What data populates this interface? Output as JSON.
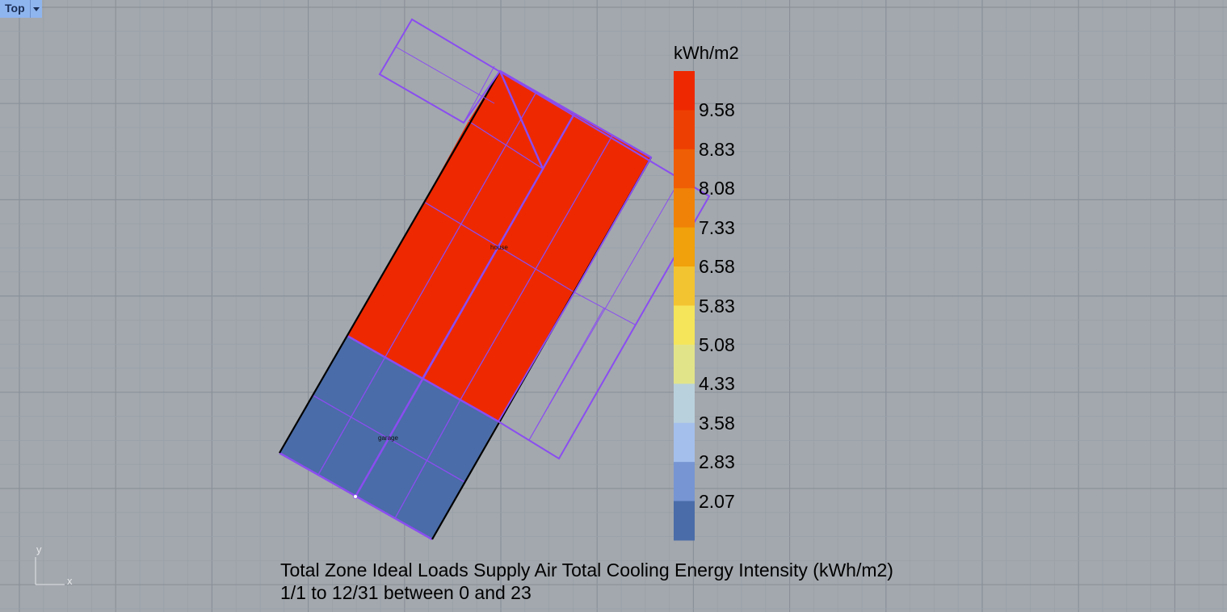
{
  "viewport": {
    "name": "Top",
    "menu_icon": "chevron-down-icon"
  },
  "zones": [
    {
      "label": "house",
      "value_color": "#ee2800"
    },
    {
      "label": "garage",
      "value_color": "#4a6ca8"
    }
  ],
  "legend": {
    "title": "kWh/m2",
    "labels": [
      "9.58",
      "8.83",
      "8.08",
      "7.33",
      "6.58",
      "5.83",
      "5.08",
      "4.33",
      "3.58",
      "2.83",
      "2.07"
    ],
    "colors": [
      "#ee2800",
      "#ee3f02",
      "#ef5e04",
      "#f08307",
      "#f0a10b",
      "#f3c432",
      "#f5e55a",
      "#e2e48a",
      "#b9d1dc",
      "#a4bfec",
      "#7695d2",
      "#4a6ca8"
    ]
  },
  "caption": {
    "line1": "Total Zone Ideal Loads Supply Air Total Cooling Energy Intensity (kWh/m2)",
    "line2": "1/1 to 12/31 between 0 and 23"
  },
  "axes": {
    "x": "x",
    "y": "y"
  },
  "colors": {
    "background": "#a3a8ae",
    "grid_minor": "#99a0a7",
    "grid_major": "#8b9199",
    "outline": "#8a4df0"
  }
}
